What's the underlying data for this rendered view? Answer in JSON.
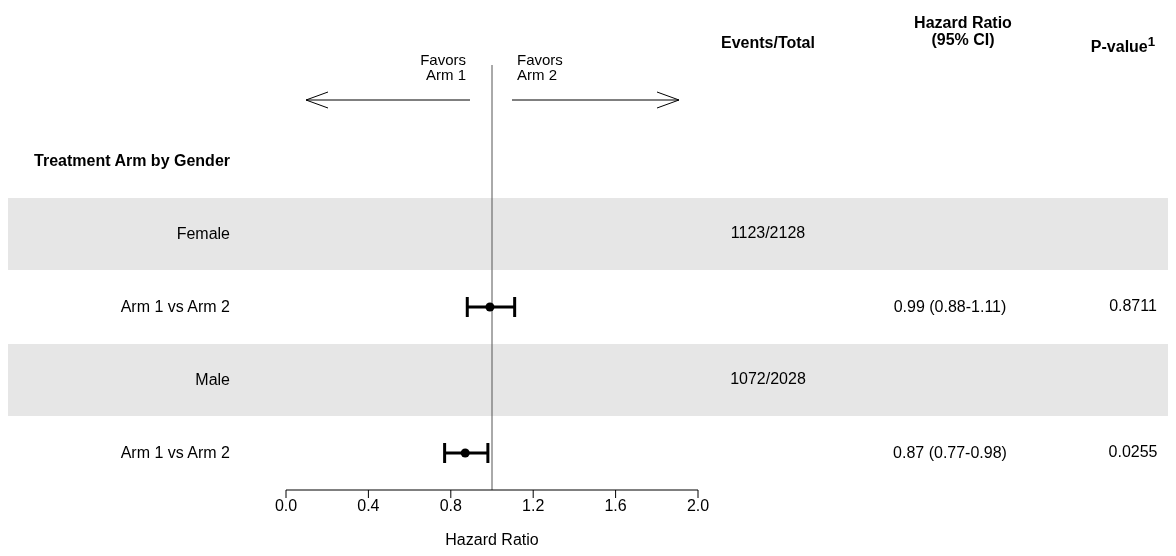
{
  "chart_data": {
    "type": "scatter",
    "xlabel": "Hazard Ratio",
    "categories": [
      "Treatment Arm by Gender",
      "Female",
      "Arm 1 vs Arm 2",
      "Male",
      "Arm 1 vs Arm 2"
    ],
    "values": [
      null,
      null,
      0.99,
      null,
      0.87
    ],
    "errors": [
      null,
      null,
      [
        0.88,
        1.11
      ],
      null,
      [
        0.77,
        0.98
      ]
    ],
    "value_labels": [
      null,
      null,
      "0.99 (0.88-1.11)",
      null,
      "0.87 (0.77-0.98)"
    ],
    "color": "#000000",
    "marker": "circle",
    "grid": false,
    "orientation": "horizontal",
    "xlim": [
      0,
      2
    ],
    "xticks": [
      {
        "value": 0,
        "label": "0.0"
      },
      {
        "value": 0.4,
        "label": "0.4"
      },
      {
        "value": 0.8,
        "label": "0.8"
      },
      {
        "value": 1.2,
        "label": "1.2"
      },
      {
        "value": 1.6,
        "label": "1.6"
      },
      {
        "value": 2,
        "label": "2.0"
      }
    ],
    "ref_lines": [
      {
        "axis": "x",
        "value": 1,
        "color": "#555555"
      }
    ],
    "bands": [
      {
        "axis": "y",
        "from": "Female",
        "to": "Female",
        "color": "#e6e6e6"
      },
      {
        "axis": "y",
        "from": "Male",
        "to": "Male",
        "color": "#e6e6e6"
      }
    ],
    "annotations": [
      "Favors Arm 1",
      "Favors Arm 2",
      "Events/Total",
      "Hazard Ratio (95% CI)",
      "P-value$^{1}$",
      "1123/2128",
      "1072/2028",
      "0.8711",
      "0.0255"
    ]
  }
}
